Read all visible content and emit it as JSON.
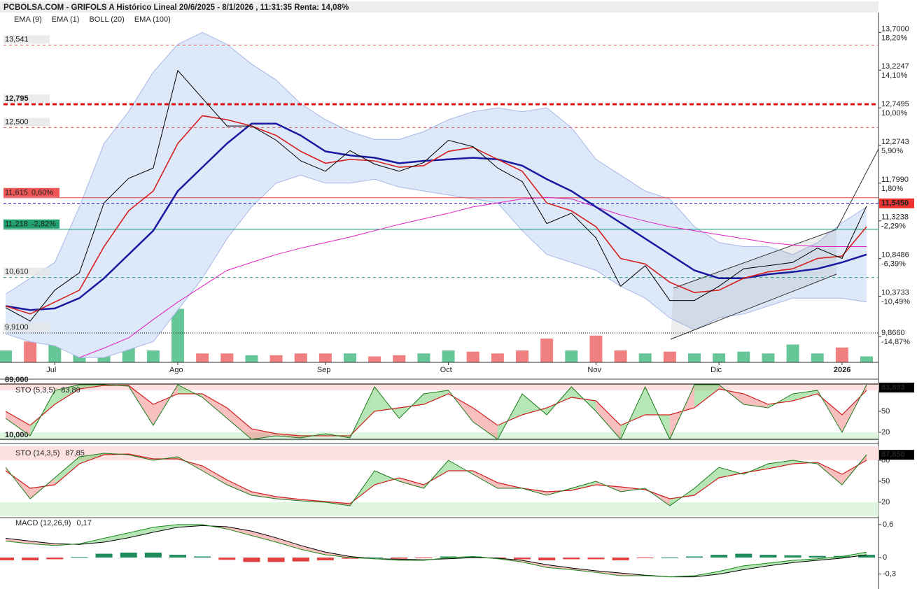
{
  "chart_data": [
    {
      "type": "line",
      "title": "PCBOLSA.COM - GRIFOLS A Histórico Lineal 20/6/2025 - 8/1/2026 , 11:31:35 Renta: 14,08%",
      "categories": [
        null,
        null,
        "Jul",
        null,
        null,
        null,
        null,
        "Ago",
        null,
        null,
        null,
        null,
        null,
        "Sep",
        null,
        null,
        null,
        null,
        "Oct",
        null,
        null,
        null,
        null,
        null,
        "Nov",
        null,
        null,
        null,
        null,
        "Dic",
        null,
        null,
        null,
        null,
        "2026",
        null
      ],
      "ylim": [
        9.54,
        13.95
      ],
      "yticks": [
        {
          "value": 13.7,
          "label": "13,7000"
        },
        {
          "value": 13.2247,
          "label": "13,2247"
        },
        {
          "value": 12.7495,
          "label": "12,7495"
        },
        {
          "value": 12.2743,
          "label": "12,2743"
        },
        {
          "value": 11.799,
          "label": "11,7990"
        },
        {
          "value": 11.3238,
          "label": "11,3238"
        },
        {
          "value": 10.8486,
          "label": "10,8486"
        },
        {
          "value": 10.3733,
          "label": "10,3733"
        },
        {
          "value": 9.866,
          "label": "9,8660"
        }
      ],
      "pct_labels": [
        "18,20%",
        "14,10%",
        "10,00%",
        "5,90%",
        "1,80%",
        "-2,29%",
        "-6,39%",
        "-10,49%",
        "-14,87%"
      ],
      "series": [
        {
          "name": "EMA (9)",
          "color": "#d62020",
          "values": [
            10.25,
            10.15,
            10.3,
            10.45,
            11.0,
            11.45,
            11.7,
            12.3,
            12.65,
            12.6,
            12.52,
            12.4,
            12.2,
            12.05,
            12.1,
            12.08,
            12.0,
            12.02,
            12.2,
            12.25,
            12.1,
            11.95,
            11.55,
            11.45,
            11.25,
            10.85,
            10.78,
            10.55,
            10.42,
            10.45,
            10.6,
            10.68,
            10.72,
            10.85,
            10.88,
            11.25
          ]
        },
        {
          "name": "EMA (1)",
          "color": "#000000",
          "values": [
            10.23,
            10.06,
            10.45,
            10.67,
            11.55,
            11.86,
            11.99,
            13.22,
            12.87,
            12.52,
            12.52,
            12.34,
            12.08,
            11.95,
            12.21,
            12.04,
            11.95,
            12.06,
            12.34,
            12.26,
            11.99,
            11.82,
            11.29,
            11.42,
            11.11,
            10.5,
            10.76,
            10.32,
            10.32,
            10.5,
            10.72,
            10.76,
            10.8,
            10.98,
            10.85,
            11.51
          ]
        },
        {
          "name": "BOLL (20)",
          "color": "#1a1aa0",
          "band_color": "#dde8f8",
          "values": [
            10.25,
            10.2,
            10.22,
            10.35,
            10.6,
            10.9,
            11.2,
            11.7,
            12.0,
            12.3,
            12.55,
            12.55,
            12.4,
            12.2,
            12.15,
            12.12,
            12.05,
            12.08,
            12.1,
            12.12,
            12.1,
            12.02,
            11.85,
            11.7,
            11.5,
            11.3,
            11.1,
            10.9,
            10.7,
            10.6,
            10.6,
            10.65,
            10.68,
            10.72,
            10.8,
            10.9
          ],
          "upper": [
            10.4,
            10.6,
            10.8,
            11.5,
            12.3,
            12.7,
            13.2,
            13.55,
            13.7,
            13.55,
            13.3,
            13.1,
            12.8,
            12.6,
            12.45,
            12.35,
            12.35,
            12.45,
            12.6,
            12.7,
            12.75,
            12.7,
            12.75,
            12.5,
            12.1,
            11.9,
            11.7,
            11.6,
            11.25,
            11.05,
            11.0,
            11.0,
            10.9,
            11.05,
            11.3,
            11.5
          ],
          "lower": [
            9.9,
            9.8,
            9.75,
            9.6,
            9.6,
            9.7,
            9.8,
            10.2,
            10.6,
            11.1,
            11.5,
            11.8,
            11.9,
            11.8,
            11.8,
            11.85,
            11.75,
            11.7,
            11.65,
            11.6,
            11.55,
            11.2,
            10.9,
            10.8,
            10.7,
            10.5,
            10.35,
            10.1,
            9.95,
            10.1,
            10.15,
            10.25,
            10.35,
            10.35,
            10.35,
            10.3
          ]
        },
        {
          "name": "EMA (100)",
          "color": "#e020c0",
          "values": [
            null,
            null,
            null,
            9.6,
            9.72,
            9.85,
            10.08,
            10.3,
            10.5,
            10.7,
            10.8,
            10.9,
            10.98,
            11.05,
            11.12,
            11.2,
            11.28,
            11.35,
            11.42,
            11.5,
            11.55,
            11.6,
            11.62,
            11.6,
            11.5,
            11.4,
            11.32,
            11.25,
            11.2,
            11.15,
            11.1,
            11.05,
            11.02,
            11.0,
            11.0,
            11.0
          ]
        }
      ],
      "levels": [
        {
          "value": 13.541,
          "label": "13,541",
          "color": "#e05050",
          "dash": "4,4",
          "width": 1
        },
        {
          "value": 12.795,
          "label": "12,795",
          "color": "#dd1111",
          "dash": "6,4",
          "width": 3
        },
        {
          "value": 12.5,
          "label": "12,500",
          "color": "#e05050",
          "dash": "4,4",
          "width": 1
        },
        {
          "value": 11.615,
          "label": "11,615",
          "pct": "0,60%",
          "color": "#e04040",
          "dash": "",
          "width": 1,
          "box": "#ee5555"
        },
        {
          "value": 11.545,
          "label": "11,5450",
          "color": "#2020c0",
          "dash": "4,3",
          "width": 1,
          "box": "#ee3333",
          "side": "right"
        },
        {
          "value": 11.218,
          "label": "11,218",
          "pct": "-2,82%",
          "color": "#139070",
          "dash": "",
          "width": 1,
          "box": "#22a070"
        },
        {
          "value": 10.61,
          "label": "10,610",
          "color": "#20a070",
          "dash": "4,4",
          "width": 1
        },
        {
          "value": 9.91,
          "label": "9,9100",
          "color": "#000000",
          "dash": "1,2",
          "width": 1
        }
      ],
      "volume": {
        "ylim": [
          0,
          100
        ],
        "up_color": "#66c698",
        "down_color": "#f08080",
        "values": [
          20,
          35,
          40,
          30,
          30,
          25,
          20,
          90,
          15,
          15,
          12,
          12,
          15,
          15,
          15,
          10,
          12,
          15,
          20,
          18,
          15,
          20,
          40,
          20,
          45,
          20,
          15,
          18,
          15,
          15,
          18,
          15,
          30,
          15,
          25,
          10
        ]
      }
    },
    {
      "type": "stochastic",
      "title": "STO (5,3,5)",
      "header_value": "83,89",
      "ylim": [
        8,
        90
      ],
      "yticks": [
        20,
        50
      ],
      "bands": [
        20,
        80
      ],
      "last": {
        "value": 83.893,
        "label": "83,893"
      },
      "levels": [
        {
          "value": 89,
          "label": "89,000"
        },
        {
          "value": 10,
          "label": "10,000"
        }
      ],
      "k_color": "#1a7a1a",
      "d_color": "#d02020",
      "k": [
        40,
        15,
        80,
        88,
        88,
        86,
        30,
        88,
        70,
        40,
        10,
        15,
        12,
        18,
        12,
        85,
        40,
        75,
        80,
        35,
        10,
        75,
        45,
        85,
        50,
        10,
        85,
        10,
        88,
        88,
        60,
        55,
        75,
        80,
        20,
        88
      ],
      "d": [
        50,
        30,
        60,
        82,
        87,
        87,
        60,
        75,
        75,
        55,
        25,
        18,
        15,
        15,
        15,
        50,
        55,
        60,
        75,
        55,
        30,
        45,
        55,
        70,
        65,
        30,
        45,
        45,
        55,
        82,
        75,
        60,
        65,
        75,
        45,
        80
      ]
    },
    {
      "type": "stochastic",
      "title": "STO (14,3,5)",
      "header_value": "87,85",
      "ylim": [
        0,
        100
      ],
      "yticks": [
        20,
        50,
        80
      ],
      "bands": [
        20,
        80
      ],
      "last": {
        "value": 87.85,
        "label": "87,850"
      },
      "levels": [],
      "k_color": "#1a7a1a",
      "d_color": "#d02020",
      "k": [
        70,
        25,
        55,
        85,
        90,
        88,
        80,
        85,
        65,
        45,
        30,
        25,
        22,
        20,
        15,
        65,
        50,
        40,
        80,
        60,
        40,
        40,
        30,
        40,
        50,
        35,
        40,
        15,
        40,
        70,
        60,
        75,
        80,
        75,
        45,
        88
      ],
      "d": [
        65,
        40,
        45,
        75,
        88,
        89,
        82,
        82,
        72,
        52,
        35,
        28,
        24,
        21,
        18,
        45,
        55,
        45,
        65,
        65,
        48,
        40,
        35,
        37,
        45,
        42,
        38,
        25,
        30,
        55,
        62,
        68,
        75,
        77,
        60,
        80
      ]
    },
    {
      "type": "macd",
      "title": "MACD (12,26,9)",
      "header_value": "0,17",
      "ylim": [
        -0.52,
        0.7
      ],
      "yticks": [
        {
          "value": 0.6,
          "label": "0,6"
        },
        0,
        {
          "value": -0.3,
          "label": "-0,3"
        }
      ],
      "macd_color": "#1a8a1a",
      "signal_color": "#000000",
      "up_color": "#1f8a5a",
      "down_color": "#e04040",
      "macd": [
        0.3,
        0.25,
        0.22,
        0.25,
        0.35,
        0.45,
        0.55,
        0.6,
        0.6,
        0.52,
        0.4,
        0.28,
        0.15,
        0.05,
        0.0,
        -0.02,
        -0.05,
        -0.05,
        0.0,
        0.02,
        -0.02,
        -0.08,
        -0.18,
        -0.22,
        -0.27,
        -0.33,
        -0.33,
        -0.35,
        -0.33,
        -0.25,
        -0.15,
        -0.1,
        -0.05,
        -0.02,
        0.02,
        0.1
      ],
      "signal": [
        0.35,
        0.3,
        0.25,
        0.24,
        0.28,
        0.36,
        0.46,
        0.55,
        0.58,
        0.56,
        0.48,
        0.36,
        0.22,
        0.1,
        0.02,
        -0.02,
        -0.03,
        -0.04,
        -0.02,
        0.0,
        -0.01,
        -0.05,
        -0.13,
        -0.19,
        -0.24,
        -0.28,
        -0.32,
        -0.35,
        -0.35,
        -0.3,
        -0.22,
        -0.15,
        -0.09,
        -0.05,
        -0.01,
        0.05
      ],
      "histogram": [
        -0.05,
        -0.05,
        -0.03,
        0.01,
        0.07,
        0.09,
        0.09,
        0.05,
        0.02,
        -0.04,
        -0.08,
        -0.08,
        -0.07,
        -0.05,
        -0.02,
        0,
        -0.02,
        -0.01,
        0.02,
        0.02,
        -0.01,
        -0.03,
        -0.05,
        -0.03,
        -0.03,
        -0.05,
        -0.01,
        0,
        0.02,
        0.05,
        0.07,
        0.05,
        0.04,
        0.03,
        0.03,
        0.05
      ]
    }
  ]
}
